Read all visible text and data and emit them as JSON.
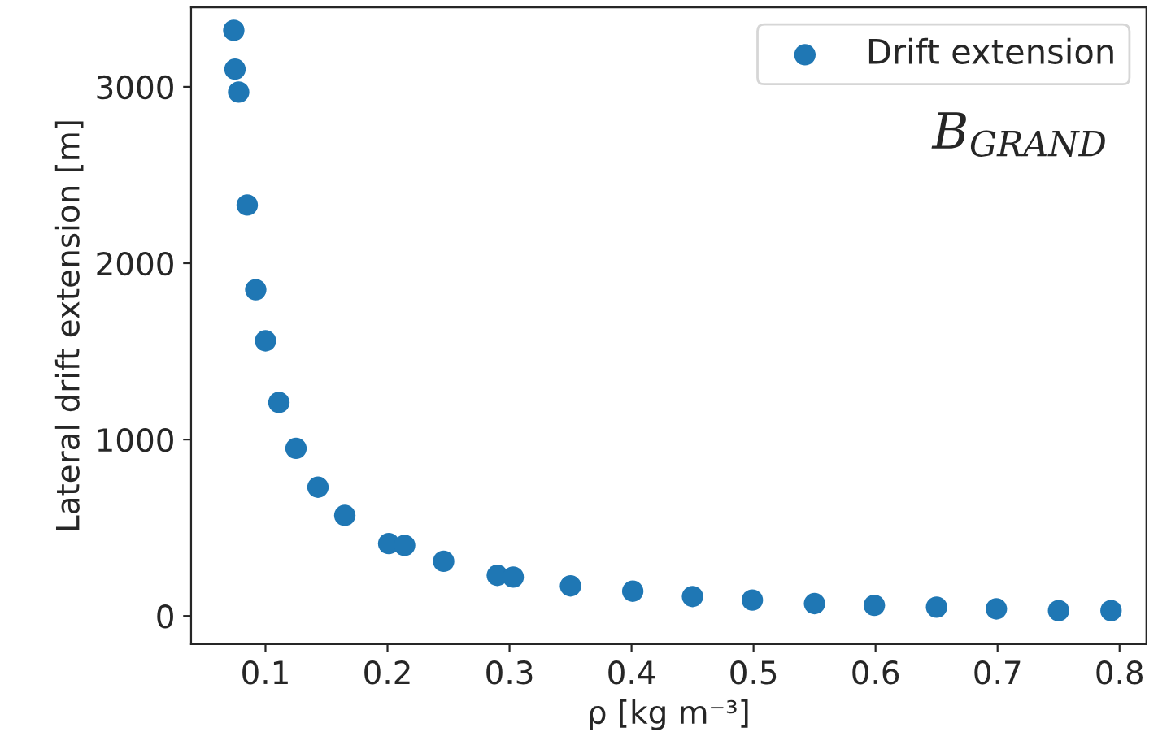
{
  "chart_data": {
    "type": "scatter",
    "xlabel": "ρ [kg m⁻³]",
    "ylabel": "Lateral drift extension [m]",
    "annotations": [
      "B$_{GRAND}$"
    ],
    "series": [
      {
        "name": "Drift extension",
        "color": "#1f77b4",
        "x": [
          0.074,
          0.075,
          0.078,
          0.085,
          0.092,
          0.1,
          0.111,
          0.125,
          0.143,
          0.165,
          0.201,
          0.214,
          0.246,
          0.29,
          0.303,
          0.35,
          0.401,
          0.45,
          0.499,
          0.55,
          0.599,
          0.65,
          0.699,
          0.75,
          0.793
        ],
        "values": [
          3320,
          3100,
          2970,
          2330,
          1850,
          1560,
          1210,
          950,
          730,
          570,
          410,
          400,
          310,
          230,
          220,
          170,
          140,
          110,
          90,
          70,
          60,
          50,
          40,
          30,
          30
        ]
      }
    ],
    "xlim": [
      0.039,
      0.822
    ],
    "xticks": [
      0.1,
      0.2,
      0.3,
      0.4,
      0.5,
      0.6,
      0.7,
      0.8
    ],
    "ylim": [
      -160,
      3450
    ],
    "yticks": [
      0,
      1000,
      2000,
      3000
    ],
    "legend": "top right",
    "marker": "circle",
    "grid": false
  }
}
